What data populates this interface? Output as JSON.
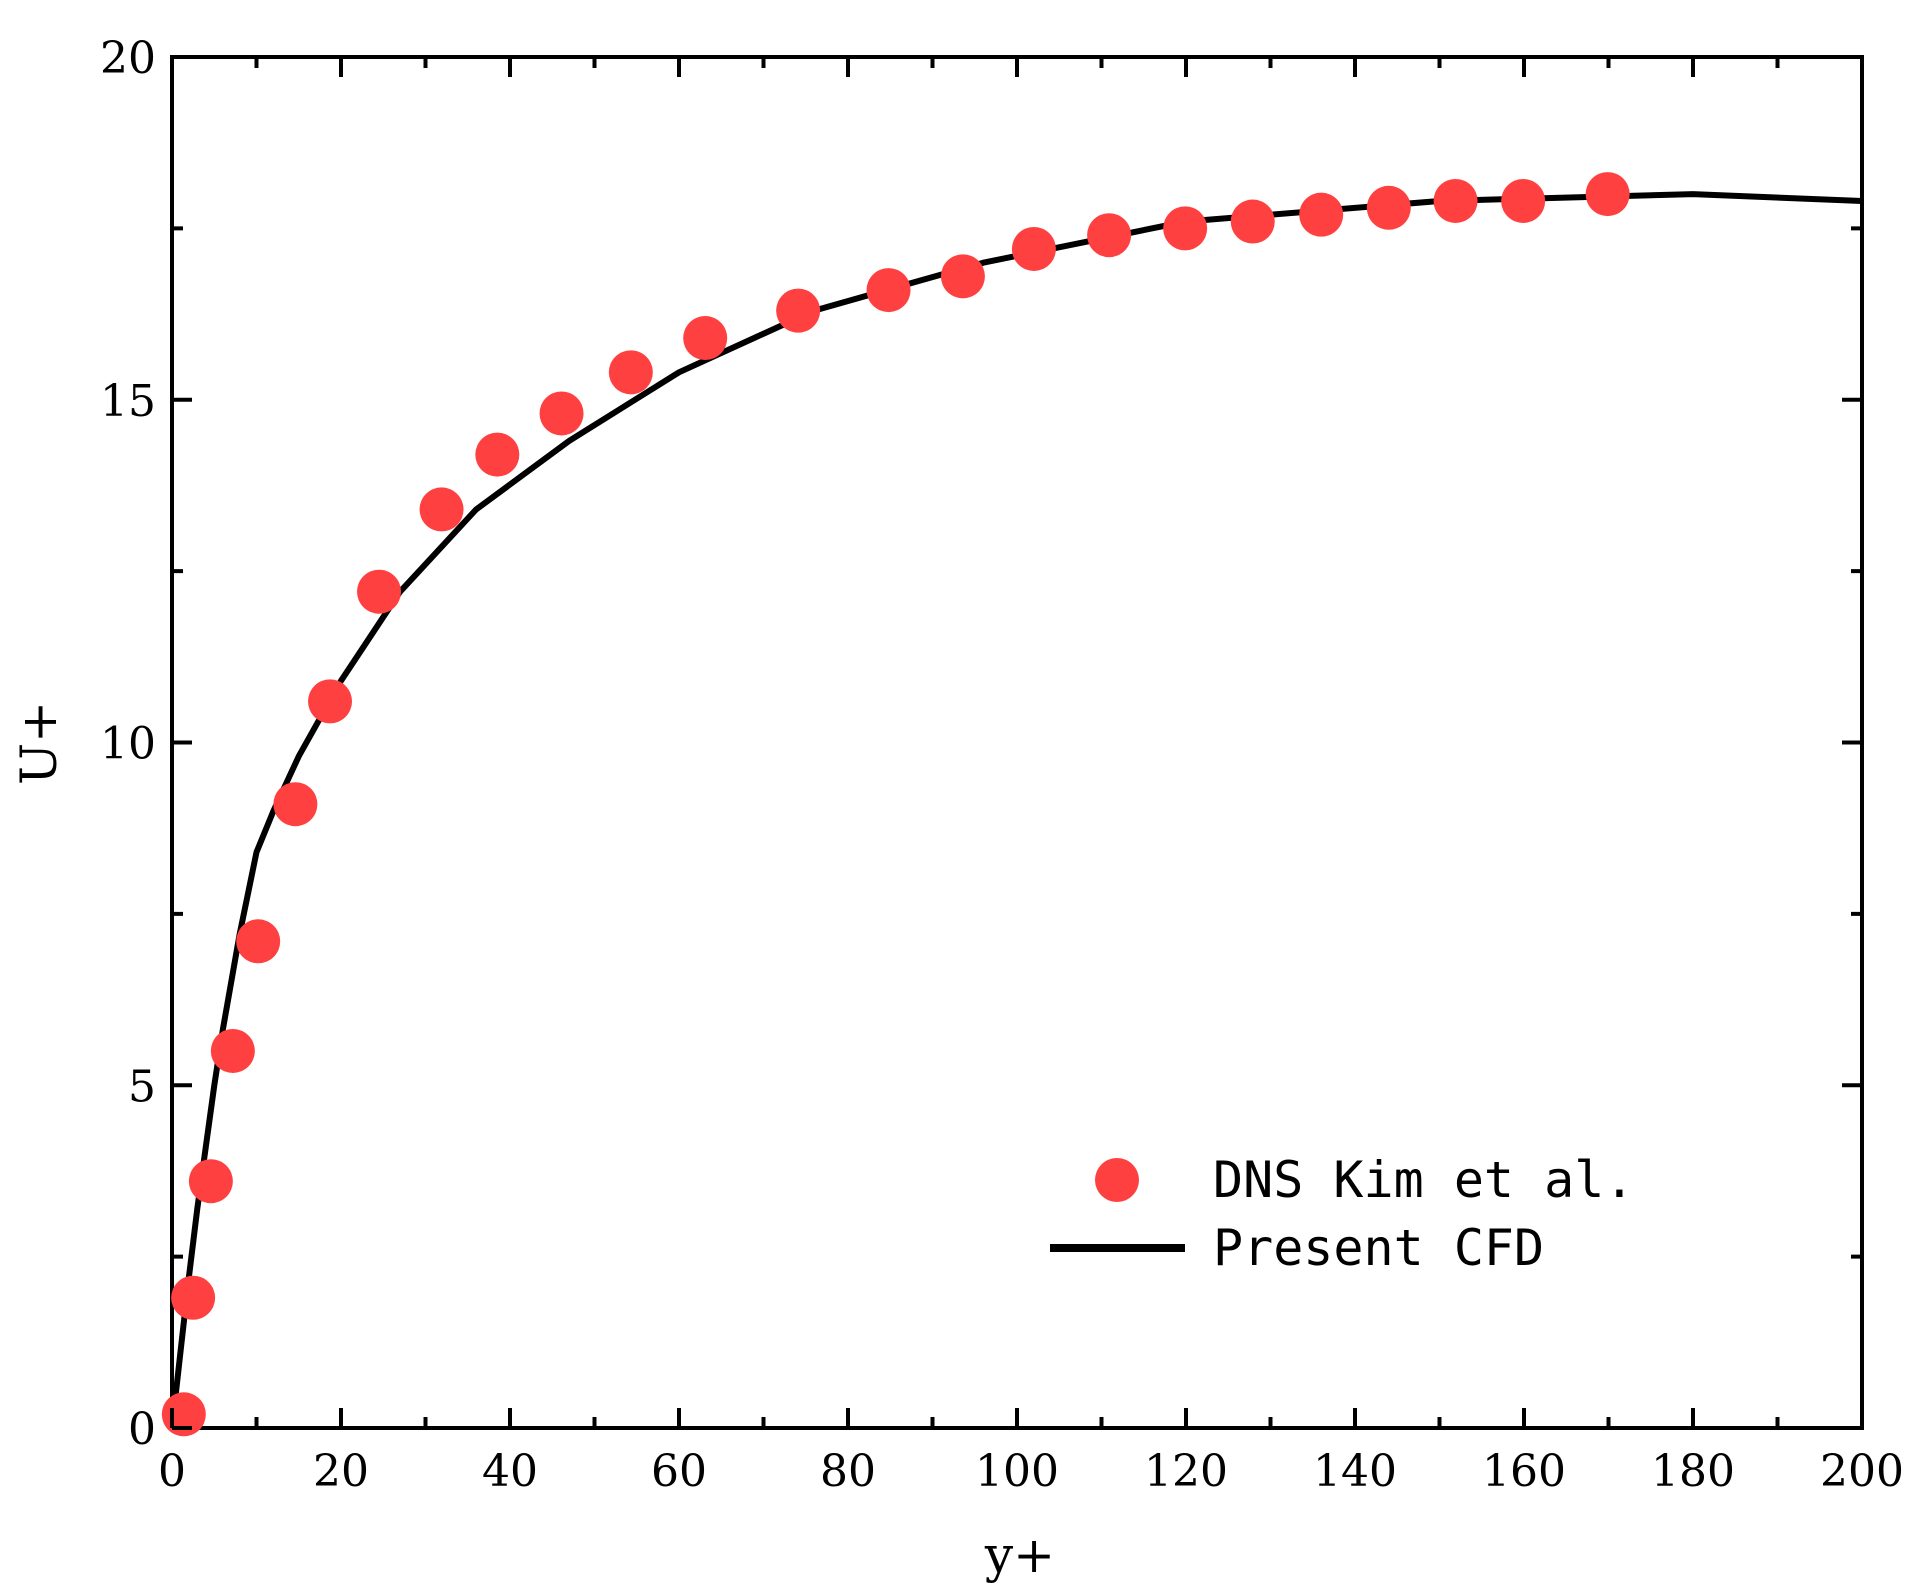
{
  "chart_data": {
    "type": "scatter",
    "xlabel": "y+",
    "ylabel": "U+",
    "xlim": [
      0,
      200
    ],
    "ylim": [
      0,
      20
    ],
    "xticks": [
      "0",
      "20",
      "40",
      "60",
      "80",
      "100",
      "120",
      "140",
      "160",
      "180",
      "200"
    ],
    "yticks": [
      "0",
      "5",
      "10",
      "15",
      "20"
    ],
    "grid": false,
    "legend": "bottom-right",
    "series": [
      {
        "name": "DNS Kim et al.",
        "kind": "markers",
        "color": "#ff4040",
        "x": [
          1.4,
          2.5,
          4.6,
          7.2,
          10.2,
          14.6,
          18.7,
          24.5,
          31.9,
          38.5,
          46.1,
          54.3,
          63.1,
          74.1,
          84.8,
          93.6,
          102.0,
          110.9,
          119.9,
          127.9,
          136.0,
          144.0,
          151.9,
          159.9,
          169.9
        ],
        "y": [
          0.2,
          1.9,
          3.6,
          5.5,
          7.1,
          9.1,
          10.6,
          12.2,
          13.4,
          14.2,
          14.8,
          15.4,
          15.9,
          16.3,
          16.6,
          16.8,
          17.2,
          17.4,
          17.5,
          17.6,
          17.7,
          17.8,
          17.9,
          17.9,
          18.0
        ]
      },
      {
        "name": "Present CFD",
        "kind": "line",
        "color": "#000000",
        "x": [
          0,
          1,
          2,
          3,
          4,
          5,
          6,
          8,
          10,
          12,
          15,
          20,
          27,
          36,
          47,
          60,
          76,
          96,
          120,
          150,
          180,
          200
        ],
        "y": [
          0,
          1.1,
          2.2,
          3.2,
          4.1,
          5.0,
          5.8,
          7.2,
          8.4,
          9.0,
          9.8,
          10.9,
          12.2,
          13.4,
          14.4,
          15.4,
          16.3,
          17.0,
          17.6,
          17.9,
          18.0,
          17.9
        ]
      }
    ]
  }
}
